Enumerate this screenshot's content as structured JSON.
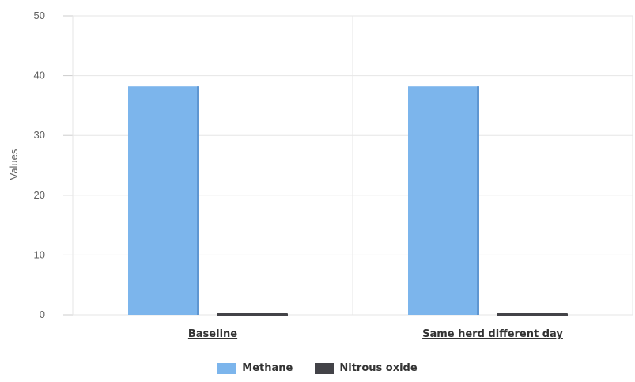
{
  "chart_data": {
    "type": "bar",
    "categories": [
      "Baseline",
      "Same herd different day"
    ],
    "series": [
      {
        "name": "Methane",
        "values": [
          38.2,
          38.2
        ],
        "color": "#7cb5ec"
      },
      {
        "name": "Nitrous oxide",
        "values": [
          0.5,
          0.5
        ],
        "color": "#434348"
      }
    ],
    "ylabel": "Values",
    "ylim": [
      0,
      50
    ],
    "yticks": [
      "0",
      "10",
      "20",
      "30",
      "40",
      "50"
    ],
    "grid": true,
    "legend_position": "bottom-center"
  }
}
